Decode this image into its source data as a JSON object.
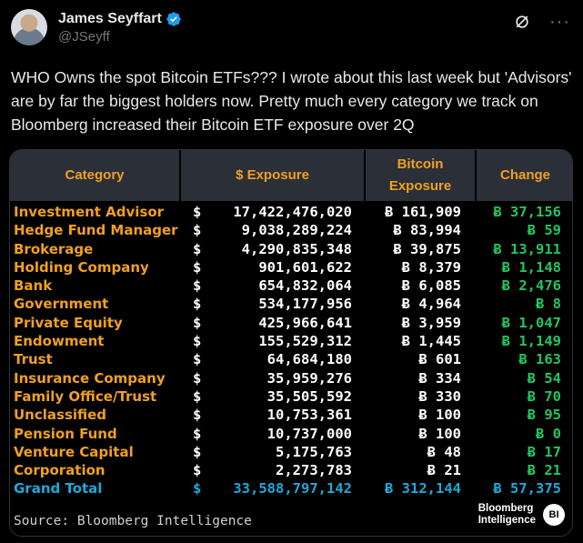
{
  "author": {
    "name": "James Seyffart",
    "handle": "@JSeyff",
    "verified_icon": "verified-badge-icon"
  },
  "tweet": {
    "text": "WHO Owns the spot Bitcoin ETFs??? I wrote about this last week but 'Advisors' are by far the biggest holders now. Pretty much every category we track on Bloomberg increased their Bitcoin ETF exposure over 2Q"
  },
  "table": {
    "headers": {
      "category": "Category",
      "exposure": "$ Exposure",
      "btc_line1": "Bitcoin",
      "btc_line2": "Exposure",
      "change": "Change"
    },
    "rows": [
      {
        "category": "Investment Advisor",
        "dollar": "$",
        "exposure": "17,422,476,020",
        "btc": "Ƀ 161,909",
        "change": "Ƀ 37,156"
      },
      {
        "category": "Hedge Fund Manager",
        "dollar": "$",
        "exposure": "9,038,289,224",
        "btc": "Ƀ 83,994",
        "change": "Ƀ 59"
      },
      {
        "category": "Brokerage",
        "dollar": "$",
        "exposure": "4,290,835,348",
        "btc": "Ƀ 39,875",
        "change": "Ƀ 13,911"
      },
      {
        "category": "Holding Company",
        "dollar": "$",
        "exposure": "901,601,622",
        "btc": "Ƀ 8,379",
        "change": "Ƀ 1,148"
      },
      {
        "category": "Bank",
        "dollar": "$",
        "exposure": "654,832,064",
        "btc": "Ƀ 6,085",
        "change": "Ƀ 2,476"
      },
      {
        "category": "Government",
        "dollar": "$",
        "exposure": "534,177,956",
        "btc": "Ƀ 4,964",
        "change": "Ƀ 8"
      },
      {
        "category": "Private Equity",
        "dollar": "$",
        "exposure": "425,966,641",
        "btc": "Ƀ 3,959",
        "change": "Ƀ 1,047"
      },
      {
        "category": "Endowment",
        "dollar": "$",
        "exposure": "155,529,312",
        "btc": "Ƀ 1,445",
        "change": "Ƀ 1,149"
      },
      {
        "category": "Trust",
        "dollar": "$",
        "exposure": "64,684,180",
        "btc": "Ƀ 601",
        "change": "Ƀ 163"
      },
      {
        "category": "Insurance Company",
        "dollar": "$",
        "exposure": "35,959,276",
        "btc": "Ƀ 334",
        "change": "Ƀ 54"
      },
      {
        "category": "Family Office/Trust",
        "dollar": "$",
        "exposure": "35,505,592",
        "btc": "Ƀ 330",
        "change": "Ƀ 70"
      },
      {
        "category": "Unclassified",
        "dollar": "$",
        "exposure": "10,753,361",
        "btc": "Ƀ 100",
        "change": "Ƀ 95"
      },
      {
        "category": "Pension Fund",
        "dollar": "$",
        "exposure": "10,737,000",
        "btc": "Ƀ 100",
        "change": "Ƀ 0"
      },
      {
        "category": "Venture Capital",
        "dollar": "$",
        "exposure": "5,175,763",
        "btc": "Ƀ 48",
        "change": "Ƀ 17"
      },
      {
        "category": "Corporation",
        "dollar": "$",
        "exposure": "2,273,783",
        "btc": "Ƀ 21",
        "change": "Ƀ 21"
      }
    ],
    "total": {
      "category": "Grand Total",
      "dollar": "$",
      "exposure": "33,588,797,142",
      "btc": "Ƀ 312,144",
      "change": "Ƀ 57,375"
    }
  },
  "footer": {
    "source": "Source: Bloomberg Intelligence",
    "logo_line1": "Bloomberg",
    "logo_line2": "Intelligence",
    "logo_mark": "BI"
  },
  "colors": {
    "header_bg": "#2b2f38",
    "header_text": "#f0a020",
    "category_text": "#f0a020",
    "change_text": "#22c55e",
    "total_text": "#1fa8d8"
  }
}
